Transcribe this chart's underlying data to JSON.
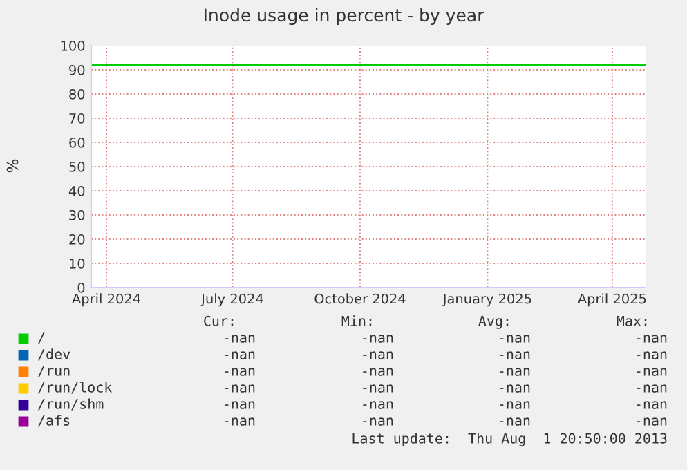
{
  "chart_data": {
    "type": "line",
    "title": "Inode usage in percent - by year",
    "ylabel": "%",
    "x": [
      "2024-03-21",
      "2025-04-25"
    ],
    "series": [
      {
        "name": "/",
        "color": "#00cc00",
        "values": [
          92,
          92
        ]
      },
      {
        "name": "/dev",
        "color": "#0066b3",
        "values": [
          null,
          null
        ]
      },
      {
        "name": "/run",
        "color": "#ff8000",
        "values": [
          null,
          null
        ]
      },
      {
        "name": "/run/lock",
        "color": "#ffcc00",
        "values": [
          null,
          null
        ]
      },
      {
        "name": "/run/shm",
        "color": "#330099",
        "values": [
          null,
          null
        ]
      },
      {
        "name": "/afs",
        "color": "#990099",
        "values": [
          null,
          null
        ]
      }
    ],
    "xlim": [
      "2024-03-21",
      "2025-04-25"
    ],
    "xticks": [
      {
        "value": "2024-04-01",
        "label": "April 2024"
      },
      {
        "value": "2024-07-01",
        "label": "July 2024"
      },
      {
        "value": "2024-10-01",
        "label": "October 2024"
      },
      {
        "value": "2025-01-01",
        "label": "January 2025"
      },
      {
        "value": "2025-04-01",
        "label": "April 2025"
      }
    ],
    "ylim": [
      0,
      100
    ],
    "yticks": [
      0,
      10,
      20,
      30,
      40,
      50,
      60,
      70,
      80,
      90,
      100
    ],
    "grid": true,
    "legend": "bottom",
    "annotations": [
      "Cur:",
      "Min:",
      "Avg:",
      "Max:",
      "-nan",
      "-nan",
      "-nan",
      "-nan",
      "-nan",
      "-nan",
      "-nan",
      "-nan",
      "-nan",
      "-nan",
      "-nan",
      "-nan",
      "-nan",
      "-nan",
      "-nan",
      "-nan",
      "-nan",
      "-nan",
      "-nan",
      "-nan",
      "-nan",
      "-nan",
      "-nan",
      "-nan",
      "Last update:  Thu Aug  1 20:50:00 2013"
    ]
  }
}
